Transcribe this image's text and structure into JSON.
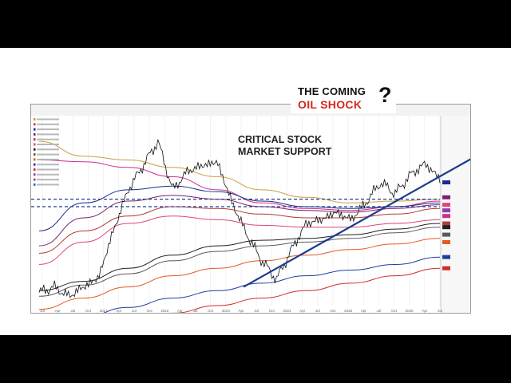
{
  "headline": {
    "line1": "THE COMING",
    "line2": "OIL SHOCK",
    "mark": "?",
    "line2_color": "#d7261e"
  },
  "annotation": {
    "line1": "CRITICAL STOCK",
    "line2": "MARKET SUPPORT"
  },
  "chart_data": {
    "type": "line",
    "x_ticks": [
      "Jul",
      "Apr",
      "Jul",
      "Oct",
      "2021",
      "Apr",
      "Jul",
      "Oct",
      "2022",
      "Apr",
      "Jul",
      "Oct",
      "2023",
      "Apr",
      "Jul",
      "Oct",
      "2024",
      "Apr",
      "Jul",
      "Oct",
      "2025",
      "Apr",
      "Jul",
      "Oct",
      "2026",
      "Apr",
      "Jul"
    ],
    "price_series": [
      0.07,
      0.1,
      0.05,
      0.1,
      0.15,
      0.4,
      0.62,
      0.75,
      0.88,
      0.62,
      0.72,
      0.75,
      0.77,
      0.55,
      0.38,
      0.24,
      0.14,
      0.3,
      0.44,
      0.46,
      0.5,
      0.46,
      0.55,
      0.66,
      0.6,
      0.7,
      0.76,
      0.68
    ],
    "trend_line": [
      [
        0.51,
        0.1
      ],
      [
        1.0,
        0.66
      ]
    ],
    "support_levels": [
      0.57,
      0.53
    ],
    "lines": [
      {
        "color": "#c8a040",
        "values": [
          0.88,
          0.8,
          0.78,
          0.74,
          0.69,
          0.62,
          0.58,
          0.55,
          0.56,
          0.57
        ]
      },
      {
        "color": "#cc2e8a",
        "values": [
          0.78,
          0.77,
          0.74,
          0.69,
          0.62,
          0.55,
          0.52,
          0.51,
          0.53,
          0.56
        ]
      },
      {
        "color": "#1a2c8e",
        "values": [
          0.4,
          0.55,
          0.62,
          0.64,
          0.61,
          0.56,
          0.53,
          0.52,
          0.53,
          0.55
        ]
      },
      {
        "color": "#7a1f6e",
        "values": [
          0.32,
          0.47,
          0.56,
          0.59,
          0.57,
          0.53,
          0.51,
          0.5,
          0.52,
          0.54
        ]
      },
      {
        "color": "#b23a3a",
        "values": [
          0.28,
          0.4,
          0.48,
          0.53,
          0.52,
          0.49,
          0.47,
          0.47,
          0.49,
          0.52
        ]
      },
      {
        "color": "#e0457a",
        "values": [
          0.22,
          0.34,
          0.44,
          0.48,
          0.46,
          0.43,
          0.42,
          0.42,
          0.44,
          0.46
        ]
      },
      {
        "color": "#222222",
        "values": [
          0.08,
          0.13,
          0.2,
          0.27,
          0.32,
          0.35,
          0.36,
          0.38,
          0.41,
          0.44
        ]
      },
      {
        "color": "#5a5a5a",
        "values": [
          0.05,
          0.11,
          0.17,
          0.24,
          0.29,
          0.32,
          0.34,
          0.36,
          0.39,
          0.42
        ]
      },
      {
        "color": "#e35a1f",
        "values": [
          -0.02,
          0.04,
          0.1,
          0.16,
          0.2,
          0.24,
          0.27,
          0.3,
          0.33,
          0.36
        ]
      },
      {
        "color": "#1b3d9e",
        "values": [
          -0.1,
          -0.06,
          -0.01,
          0.04,
          0.08,
          0.12,
          0.16,
          0.19,
          0.22,
          0.26
        ]
      },
      {
        "color": "#d12a2a",
        "values": [
          -0.18,
          -0.14,
          -0.09,
          -0.04,
          0.0,
          0.04,
          0.08,
          0.12,
          0.16,
          0.2
        ]
      }
    ],
    "legend_colors": [
      "#c8a040",
      "#cc2e8a",
      "#1a2c8e",
      "#7a1f6e",
      "#b23a3a",
      "#e0457a",
      "#222222",
      "#5a5a5a",
      "#e35a1f",
      "#1b3d9e",
      "#d12a2a",
      "#8a3fa8",
      "#c23b7a",
      "#2a6fb0"
    ],
    "right_tags": [
      {
        "value": 0.66,
        "color": "#1a2c8e"
      },
      {
        "value": 0.58,
        "color": "#7a1f6e"
      },
      {
        "value": 0.54,
        "color": "#e0457a"
      },
      {
        "value": 0.51,
        "color": "#8a3fa8"
      },
      {
        "value": 0.48,
        "color": "#cc2e8a"
      },
      {
        "value": 0.44,
        "color": "#b23a3a"
      },
      {
        "value": 0.42,
        "color": "#222222"
      },
      {
        "value": 0.38,
        "color": "#5a5a5a"
      },
      {
        "value": 0.34,
        "color": "#e35a1f"
      },
      {
        "value": 0.26,
        "color": "#1b3d9e"
      },
      {
        "value": 0.2,
        "color": "#d12a2a"
      }
    ]
  }
}
